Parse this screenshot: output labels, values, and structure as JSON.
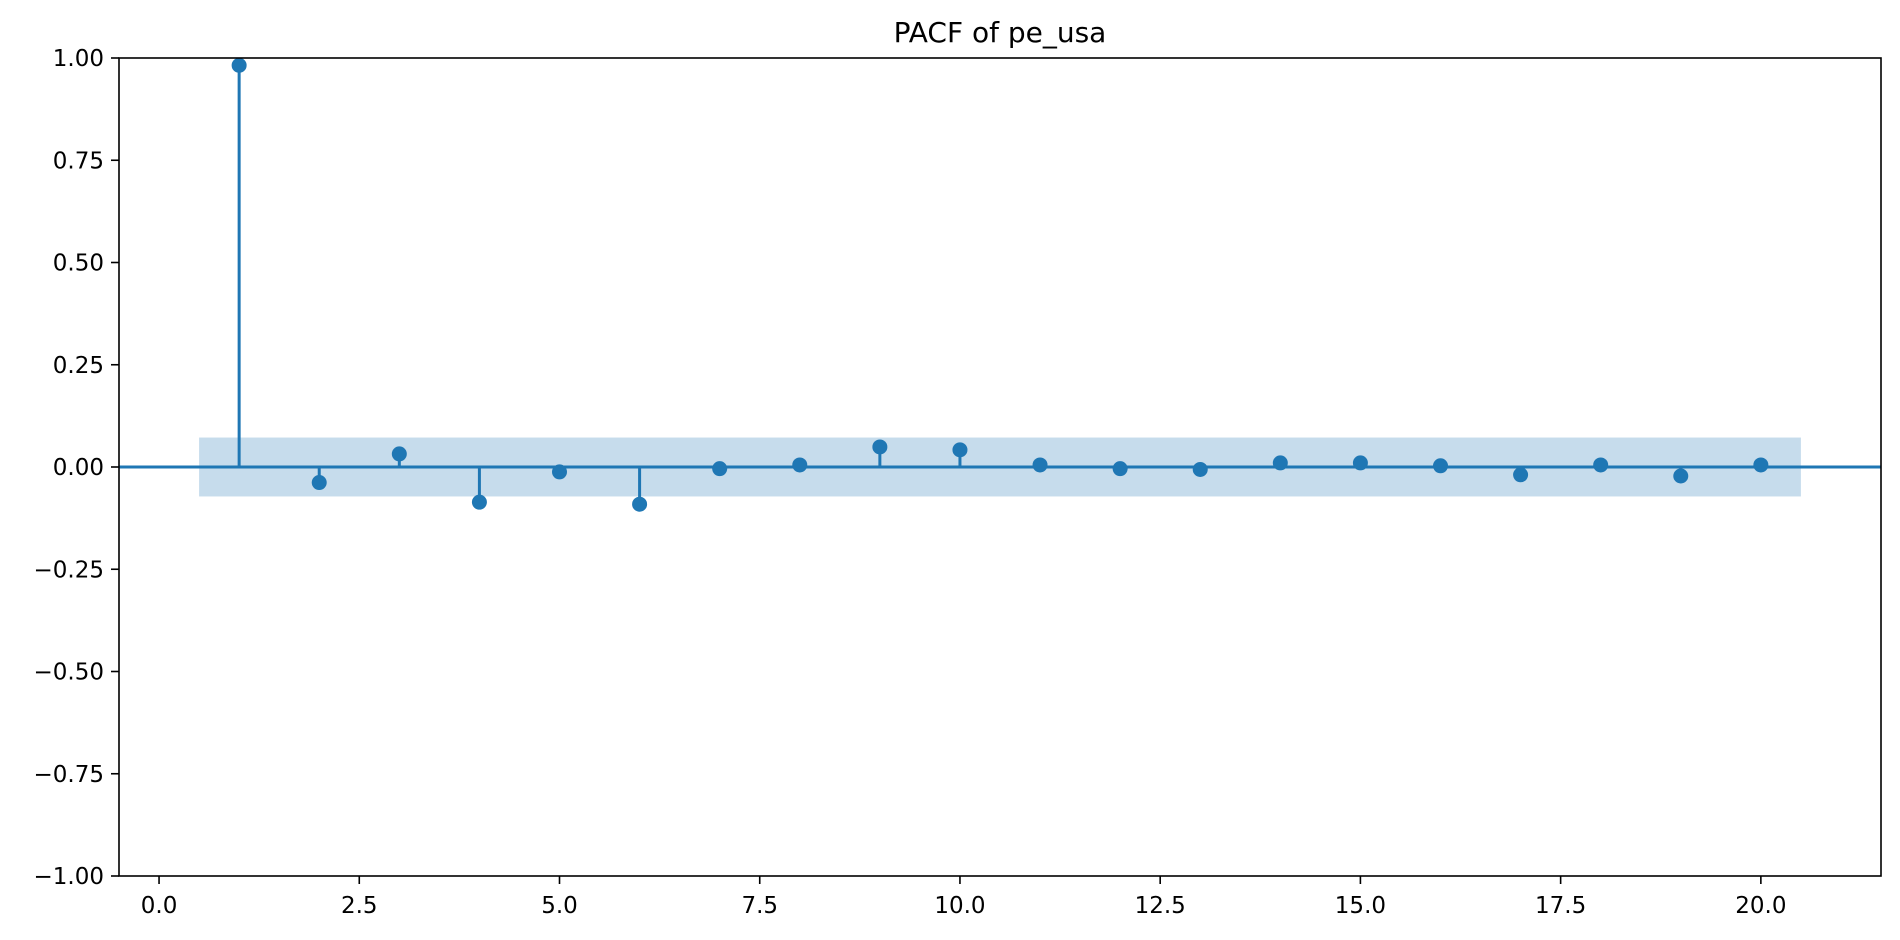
{
  "chart_data": {
    "type": "stem",
    "title": "PACF of pe_usa",
    "xlabel": "",
    "ylabel": "",
    "xlim": [
      -0.5,
      21.5
    ],
    "ylim": [
      -1.0,
      1.0
    ],
    "x_ticks": [
      0.0,
      2.5,
      5.0,
      7.5,
      10.0,
      12.5,
      15.0,
      17.5,
      20.0
    ],
    "x_tick_labels": [
      "0.0",
      "2.5",
      "5.0",
      "7.5",
      "10.0",
      "12.5",
      "15.0",
      "17.5",
      "20.0"
    ],
    "y_ticks": [
      -1.0,
      -0.75,
      -0.5,
      -0.25,
      0.0,
      0.25,
      0.5,
      0.75,
      1.0
    ],
    "y_tick_labels": [
      "−1.00",
      "−0.75",
      "−0.50",
      "−0.25",
      "0.00",
      "0.25",
      "0.50",
      "0.75",
      "1.00"
    ],
    "grid": false,
    "lags": [
      1,
      2,
      3,
      4,
      5,
      6,
      7,
      8,
      9,
      10,
      11,
      12,
      13,
      14,
      15,
      16,
      17,
      18,
      19,
      20
    ],
    "values": [
      0.982,
      -0.038,
      0.032,
      -0.086,
      -0.012,
      -0.091,
      -0.004,
      0.005,
      0.049,
      0.042,
      0.005,
      -0.004,
      -0.006,
      0.01,
      0.01,
      0.003,
      -0.019,
      0.005,
      -0.022,
      0.005
    ],
    "confidence_band": {
      "x_range": [
        0.5,
        20.5
      ],
      "lower": -0.072,
      "upper": 0.072
    },
    "colors": {
      "stem": "#1f77b4",
      "band": "#c6dcec",
      "axes": "#000000"
    }
  }
}
